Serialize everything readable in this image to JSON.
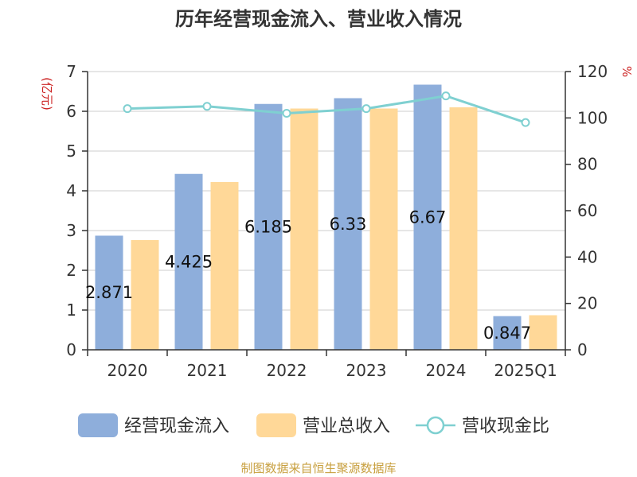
{
  "chart_data": {
    "type": "bar",
    "title": "历年经营现金流入、营业收入情况",
    "categories": [
      "2020",
      "2021",
      "2022",
      "2023",
      "2024",
      "2025Q1"
    ],
    "ylabel_left": "(亿元)",
    "ylabel_right": "%",
    "ylim_left": [
      0,
      7
    ],
    "ylim_right": [
      0,
      120
    ],
    "yticks_left": [
      0,
      1,
      2,
      3,
      4,
      5,
      6,
      7
    ],
    "yticks_right": [
      0,
      20,
      40,
      60,
      80,
      100,
      120
    ],
    "grid": true,
    "legend_position": "bottom",
    "series": [
      {
        "name": "经营现金流入",
        "type": "bar",
        "axis": "left",
        "color": "#8eaedb",
        "values": [
          2.871,
          4.425,
          6.185,
          6.33,
          6.67,
          0.847
        ],
        "data_labels": [
          "2.871",
          "4.425",
          "6.185",
          "6.33",
          "6.67",
          "0.847"
        ]
      },
      {
        "name": "营业总收入",
        "type": "bar",
        "axis": "left",
        "color": "#ffd898",
        "values": [
          2.76,
          4.22,
          6.07,
          6.07,
          6.1,
          0.87
        ]
      },
      {
        "name": "营收现金比",
        "type": "line",
        "axis": "right",
        "color": "#7fd0d1",
        "values": [
          104,
          105,
          102,
          104,
          109.5,
          98
        ]
      }
    ]
  },
  "source": "制图数据来自恒生聚源数据库"
}
